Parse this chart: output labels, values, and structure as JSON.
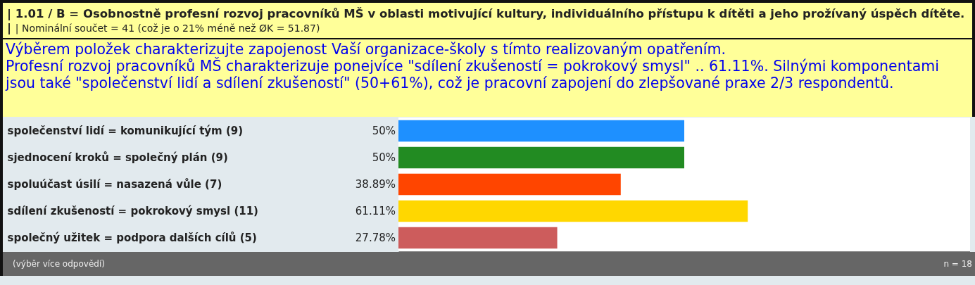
{
  "chart_data": {
    "type": "bar",
    "orientation": "horizontal",
    "title": "| 1.01 / B = Osobnostně profesní rozvoj pracovníků MŠ v oblasti motivující kultury, individuálního přístupu k dítěti a jeho prožívaný úspěch dítěte. |",
    "subtitle": "| Nominální součet = 41 (což je o 21% méně než ØK = 51.87)",
    "annotations": [
      "Výběrem položek charakterizujte zapojenost Vaší organizace-školy s tímto realizovaným opatřením.",
      "Profesní rozvoj pracovníků MŠ charakterizuje ponejvíce \"sdílení zkušeností = pokrokový smysl\" .. 61.11%. Silnými komponentami jsou také \"společenství lidí a sdílení zkušeností\" (50+61%), což je pracovní zapojení do zlepšované praxe 2/3 respondentů.",
      "(výběr více odpovědí)",
      "n = 18"
    ],
    "categories": [
      "společenství lidí = komunikující tým (9)",
      "sjednocení kroků = společný plán (9)",
      "spoluúčast úsilí = nasazená vůle (7)",
      "sdílení zkušeností = pokrokový smysl (11)",
      "společný užitek = podpora dalších cílů (5)"
    ],
    "values": [
      50,
      50,
      38.89,
      61.11,
      27.78
    ],
    "value_labels": [
      "50%",
      "50%",
      "38.89%",
      "61.11%",
      "27.78%"
    ],
    "colors": [
      "#1e90ff",
      "#228b22",
      "#ff4500",
      "#ffd700",
      "#cd5c5c"
    ],
    "xlim": [
      0,
      100
    ]
  }
}
